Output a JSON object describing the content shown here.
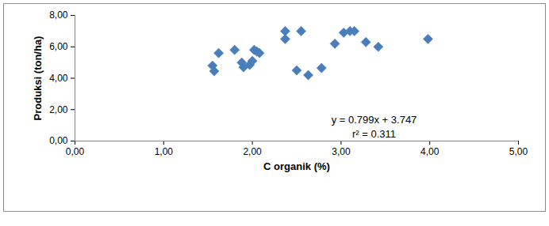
{
  "chart_data": {
    "type": "scatter",
    "x_label": "C organik (%)",
    "y_label": "Produksi (ton/ha)",
    "x": [
      1.55,
      1.57,
      1.62,
      1.8,
      1.88,
      1.9,
      1.97,
      2.0,
      2.02,
      2.05,
      2.08,
      2.37,
      2.37,
      2.5,
      2.55,
      2.63,
      2.78,
      2.93,
      3.03,
      3.1,
      3.15,
      3.28,
      3.42,
      3.98
    ],
    "values": [
      4.8,
      4.45,
      5.6,
      5.8,
      5.0,
      4.7,
      4.85,
      5.1,
      5.8,
      5.7,
      5.6,
      7.0,
      6.5,
      4.5,
      7.0,
      4.2,
      4.65,
      6.2,
      6.9,
      7.0,
      7.0,
      6.3,
      6.0,
      6.5
    ],
    "color": "#4a7ebb",
    "marker": "diamond",
    "xlim": [
      0,
      5
    ],
    "xticks": [
      {
        "value": 0,
        "label": "0,00"
      },
      {
        "value": 1,
        "label": "1,00"
      },
      {
        "value": 2,
        "label": "2,00"
      },
      {
        "value": 3,
        "label": "3,00"
      },
      {
        "value": 4,
        "label": "4,00"
      },
      {
        "value": 5,
        "label": "5,00"
      }
    ],
    "ylim": [
      0,
      8
    ],
    "yticks": [
      {
        "value": 0,
        "label": "0,00"
      },
      {
        "value": 2,
        "label": "2,00"
      },
      {
        "value": 4,
        "label": "4,00"
      },
      {
        "value": 6,
        "label": "6,00"
      },
      {
        "value": 8,
        "label": "8,00"
      }
    ],
    "grid": false,
    "annotations": [
      "y = 0.799x + 3.747",
      "r² = 0.311"
    ]
  }
}
